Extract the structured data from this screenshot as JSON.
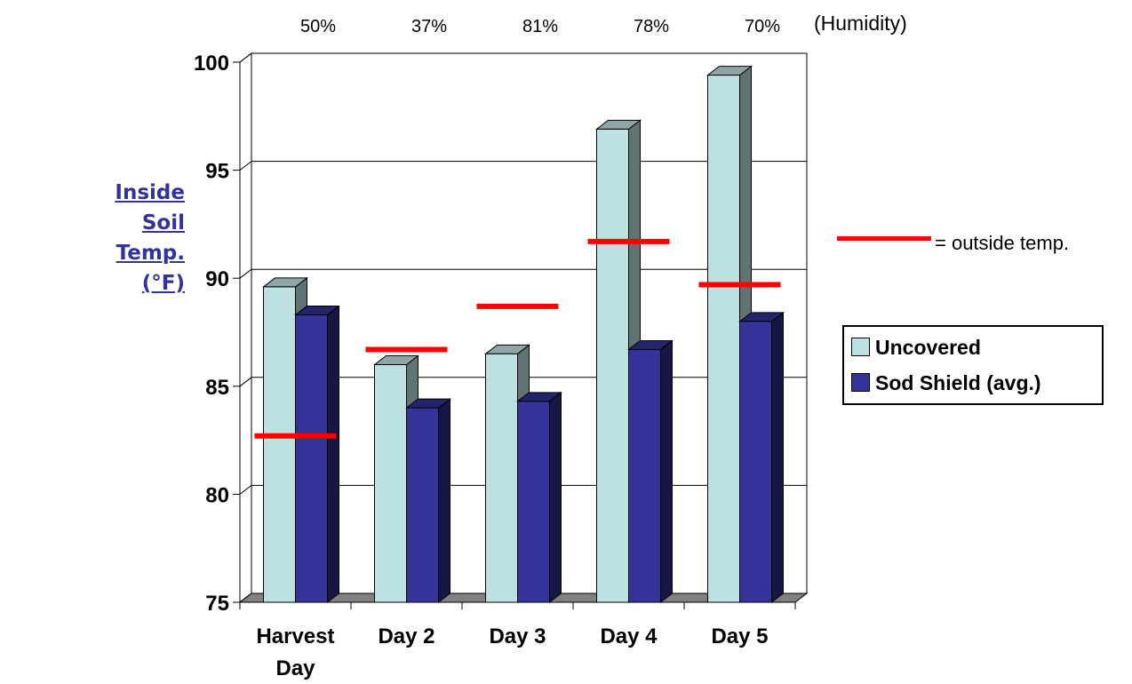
{
  "chart_data": {
    "type": "bar",
    "title": "",
    "ylabel_lines": [
      "Inside Soil",
      "Temp.  (°F)"
    ],
    "categories": [
      {
        "label": "Harvest",
        "label2": "Day"
      },
      {
        "label": "Day 2",
        "label2": ""
      },
      {
        "label": "Day 3",
        "label2": ""
      },
      {
        "label": "Day 4",
        "label2": ""
      },
      {
        "label": "Day 5",
        "label2": ""
      }
    ],
    "series": [
      {
        "name": "Uncovered",
        "values": [
          89.6,
          86.0,
          86.5,
          96.9,
          99.4
        ],
        "color": "#bde1e1"
      },
      {
        "name": "Sod Shield (avg.)",
        "values": [
          88.3,
          84.0,
          84.3,
          86.7,
          88.0
        ],
        "color": "#333399"
      }
    ],
    "outside_temp": {
      "label": "= outside temp.",
      "values": [
        82.7,
        86.7,
        88.7,
        91.7,
        89.7
      ],
      "color": "#ff0000"
    },
    "humidity": {
      "label": "(Humidity)",
      "values": [
        "50%",
        "37%",
        "81%",
        "78%",
        "70%"
      ]
    },
    "ylim": [
      75,
      100
    ],
    "yticks": [
      "75",
      "80",
      "85",
      "90",
      "95",
      "100"
    ],
    "grid": true,
    "legend_position": "right"
  }
}
